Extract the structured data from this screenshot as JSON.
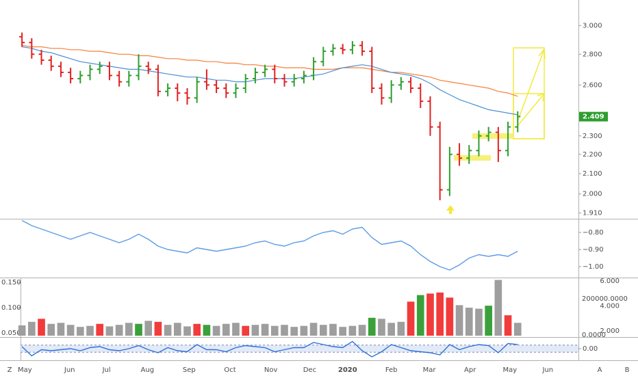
{
  "x_axis": {
    "xlim": [
      -0.15,
      57.25
    ],
    "xticks": [
      {
        "value": 0.3,
        "label": "May"
      },
      {
        "value": 4.9,
        "label": "Jun"
      },
      {
        "value": 8.7,
        "label": "Jul"
      },
      {
        "value": 12.9,
        "label": "Aug"
      },
      {
        "value": 17.2,
        "label": "Sep"
      },
      {
        "value": 21.4,
        "label": "Oct"
      },
      {
        "value": 25.6,
        "label": "Nov"
      },
      {
        "value": 29.6,
        "label": "Dec"
      },
      {
        "value": 33.5,
        "label": "2020"
      },
      {
        "value": 38.0,
        "label": "Feb"
      },
      {
        "value": 41.9,
        "label": "Mar"
      },
      {
        "value": 46.1,
        "label": "Apr"
      },
      {
        "value": 50.2,
        "label": "May"
      },
      {
        "value": 54.1,
        "label": "Jun"
      }
    ],
    "corner_labels": [
      "Z",
      "A",
      "B"
    ]
  },
  "chart_data": [
    {
      "type": "ohlc",
      "log_scale": true,
      "ylim": [
        1.89,
        3.18
      ],
      "yticks": [
        {
          "value": 3,
          "label": "3.000"
        },
        {
          "value": 2.8,
          "label": "2.800"
        },
        {
          "value": 2.6,
          "label": "2.600"
        },
        {
          "value": 2.3,
          "label": "2.300"
        },
        {
          "value": 2.2,
          "label": "2.200"
        },
        {
          "value": 2.1,
          "label": "2.100"
        },
        {
          "value": 2,
          "label": "2.000"
        },
        {
          "value": 1.91,
          "label": "1.910"
        }
      ],
      "last_price": {
        "value": 2.409,
        "label": "2.409",
        "color": "#2e9e2e"
      },
      "up_color": "#2e9e2e",
      "down_color": "#e02020",
      "open": [
        2.92,
        2.88,
        2.8,
        2.76,
        2.72,
        2.68,
        2.64,
        2.66,
        2.7,
        2.72,
        2.66,
        2.62,
        2.66,
        2.72,
        2.7,
        2.56,
        2.58,
        2.55,
        2.52,
        2.62,
        2.6,
        2.58,
        2.55,
        2.58,
        2.64,
        2.68,
        2.7,
        2.64,
        2.62,
        2.64,
        2.66,
        2.75,
        2.82,
        2.84,
        2.83,
        2.86,
        2.82,
        2.58,
        2.52,
        2.6,
        2.62,
        2.58,
        2.5,
        2.35,
        2.02,
        2.2,
        2.18,
        2.22,
        2.3,
        2.32,
        2.22,
        2.35
      ],
      "high": [
        2.95,
        2.91,
        2.83,
        2.79,
        2.75,
        2.71,
        2.69,
        2.73,
        2.75,
        2.75,
        2.69,
        2.69,
        2.8,
        2.75,
        2.73,
        2.61,
        2.61,
        2.58,
        2.65,
        2.7,
        2.63,
        2.61,
        2.61,
        2.67,
        2.71,
        2.73,
        2.73,
        2.67,
        2.67,
        2.69,
        2.78,
        2.85,
        2.87,
        2.87,
        2.89,
        2.89,
        2.85,
        2.61,
        2.63,
        2.65,
        2.65,
        2.61,
        2.53,
        2.38,
        2.24,
        2.26,
        2.25,
        2.33,
        2.35,
        2.35,
        2.38,
        2.44
      ],
      "low": [
        2.85,
        2.77,
        2.73,
        2.69,
        2.65,
        2.61,
        2.61,
        2.63,
        2.67,
        2.63,
        2.59,
        2.59,
        2.63,
        2.67,
        2.53,
        2.53,
        2.5,
        2.48,
        2.49,
        2.57,
        2.55,
        2.52,
        2.52,
        2.55,
        2.61,
        2.65,
        2.61,
        2.59,
        2.59,
        2.61,
        2.63,
        2.72,
        2.79,
        2.8,
        2.8,
        2.79,
        2.55,
        2.48,
        2.49,
        2.57,
        2.55,
        2.46,
        2.3,
        1.97,
        1.99,
        2.14,
        2.15,
        2.19,
        2.27,
        2.16,
        2.19,
        2.32
      ],
      "close": [
        2.88,
        2.8,
        2.76,
        2.72,
        2.68,
        2.64,
        2.66,
        2.7,
        2.72,
        2.66,
        2.62,
        2.66,
        2.72,
        2.7,
        2.56,
        2.58,
        2.55,
        2.52,
        2.62,
        2.6,
        2.58,
        2.55,
        2.58,
        2.64,
        2.68,
        2.7,
        2.64,
        2.62,
        2.64,
        2.66,
        2.75,
        2.82,
        2.84,
        2.83,
        2.86,
        2.82,
        2.58,
        2.52,
        2.6,
        2.62,
        2.58,
        2.5,
        2.35,
        2.02,
        2.2,
        2.18,
        2.22,
        2.3,
        2.32,
        2.22,
        2.35,
        2.41
      ],
      "series": [
        {
          "color": "#f57f3b",
          "values": [
            2.86,
            2.85,
            2.85,
            2.84,
            2.84,
            2.83,
            2.83,
            2.82,
            2.82,
            2.81,
            2.8,
            2.8,
            2.79,
            2.79,
            2.78,
            2.77,
            2.77,
            2.76,
            2.76,
            2.75,
            2.75,
            2.74,
            2.74,
            2.73,
            2.73,
            2.72,
            2.72,
            2.71,
            2.71,
            2.71,
            2.7,
            2.7,
            2.7,
            2.71,
            2.71,
            2.71,
            2.7,
            2.69,
            2.68,
            2.68,
            2.67,
            2.66,
            2.65,
            2.63,
            2.62,
            2.61,
            2.6,
            2.59,
            2.58,
            2.56,
            2.55,
            2.53
          ]
        },
        {
          "color": "#4a8fd4",
          "values": [
            2.85,
            2.84,
            2.82,
            2.81,
            2.79,
            2.77,
            2.75,
            2.74,
            2.73,
            2.72,
            2.71,
            2.7,
            2.7,
            2.69,
            2.68,
            2.67,
            2.66,
            2.65,
            2.65,
            2.64,
            2.63,
            2.63,
            2.62,
            2.62,
            2.63,
            2.64,
            2.64,
            2.64,
            2.64,
            2.65,
            2.66,
            2.67,
            2.69,
            2.71,
            2.72,
            2.73,
            2.72,
            2.7,
            2.68,
            2.67,
            2.66,
            2.64,
            2.61,
            2.57,
            2.54,
            2.51,
            2.49,
            2.47,
            2.45,
            2.44,
            2.43,
            2.42
          ]
        }
      ]
    },
    {
      "type": "line",
      "ylim": [
        -1.06,
        -0.728
      ],
      "yticks": [
        {
          "value": -0.8,
          "label": "−0.80"
        },
        {
          "value": -0.9,
          "label": "−0.90"
        },
        {
          "value": -1,
          "label": "−1.00"
        }
      ],
      "series": [
        {
          "color": "#5b9be6",
          "values": [
            -0.73,
            -0.76,
            -0.78,
            -0.8,
            -0.82,
            -0.84,
            -0.82,
            -0.8,
            -0.82,
            -0.84,
            -0.86,
            -0.84,
            -0.81,
            -0.84,
            -0.88,
            -0.9,
            -0.91,
            -0.92,
            -0.89,
            -0.9,
            -0.91,
            -0.9,
            -0.89,
            -0.88,
            -0.86,
            -0.85,
            -0.87,
            -0.88,
            -0.86,
            -0.85,
            -0.82,
            -0.8,
            -0.79,
            -0.81,
            -0.78,
            -0.77,
            -0.83,
            -0.87,
            -0.86,
            -0.85,
            -0.88,
            -0.93,
            -0.97,
            -1.0,
            -1.02,
            -0.99,
            -0.95,
            -0.93,
            -0.94,
            -0.93,
            -0.94,
            -0.91
          ]
        }
      ]
    },
    {
      "type": "bar",
      "ylim": [
        0.0446,
        0.157
      ],
      "yticks": [
        {
          "value": 0.15,
          "label": "0.150"
        },
        {
          "value": 0.1,
          "label": "0.100"
        },
        {
          "value": 0.05,
          "label": "0.050"
        }
      ],
      "y2lim": [
        1.616,
        6.164
      ],
      "y2ticks": [
        {
          "value": 6,
          "label": "6.000"
        },
        {
          "value": 4,
          "label": "4.000"
        },
        {
          "value": 2,
          "label": "2.000"
        }
      ],
      "y3lim": [
        -3774,
        309434
      ],
      "y3ticks": [
        {
          "value": 200000,
          "label": "200000.0000"
        },
        {
          "value": 0,
          "label": "0.0000"
        }
      ],
      "values": [
        0.065,
        0.072,
        0.078,
        0.068,
        0.07,
        0.066,
        0.062,
        0.064,
        0.068,
        0.063,
        0.066,
        0.07,
        0.068,
        0.074,
        0.072,
        0.066,
        0.07,
        0.063,
        0.068,
        0.066,
        0.064,
        0.068,
        0.07,
        0.064,
        0.066,
        0.068,
        0.064,
        0.066,
        0.062,
        0.064,
        0.07,
        0.066,
        0.068,
        0.062,
        0.064,
        0.066,
        0.08,
        0.078,
        0.07,
        0.072,
        0.112,
        0.125,
        0.128,
        0.13,
        0.12,
        0.105,
        0.1,
        0.098,
        0.104,
        0.155,
        0.085,
        0.07
      ],
      "colors": [
        "#9e9e9e",
        "#9e9e9e",
        "#f23b3b",
        "#9e9e9e",
        "#9e9e9e",
        "#9e9e9e",
        "#9e9e9e",
        "#9e9e9e",
        "#f23b3b",
        "#9e9e9e",
        "#9e9e9e",
        "#9e9e9e",
        "#3aa13a",
        "#9e9e9e",
        "#f23b3b",
        "#9e9e9e",
        "#9e9e9e",
        "#9e9e9e",
        "#f23b3b",
        "#3aa13a",
        "#9e9e9e",
        "#9e9e9e",
        "#9e9e9e",
        "#f23b3b",
        "#9e9e9e",
        "#9e9e9e",
        "#9e9e9e",
        "#9e9e9e",
        "#9e9e9e",
        "#9e9e9e",
        "#9e9e9e",
        "#9e9e9e",
        "#9e9e9e",
        "#9e9e9e",
        "#9e9e9e",
        "#9e9e9e",
        "#3aa13a",
        "#9e9e9e",
        "#9e9e9e",
        "#9e9e9e",
        "#f23b3b",
        "#3aa13a",
        "#f23b3b",
        "#f23b3b",
        "#f23b3b",
        "#9e9e9e",
        "#9e9e9e",
        "#9e9e9e",
        "#3aa13a",
        "#9e9e9e",
        "#f23b3b",
        "#9e9e9e"
      ]
    },
    {
      "type": "line",
      "ylim": [
        -1,
        1
      ],
      "yticks": [
        {
          "value": 0,
          "label": "0.00"
        }
      ],
      "band": [
        -0.35,
        0.35
      ],
      "band_color": "#cfdcf3",
      "series": [
        {
          "color": "#2f6fd6",
          "values": [
            0.2,
            -0.7,
            -0.1,
            -0.2,
            -0.1,
            0.0,
            -0.2,
            0.1,
            0.2,
            -0.1,
            -0.2,
            0.0,
            0.3,
            -0.1,
            -0.4,
            0.1,
            -0.2,
            -0.3,
            0.4,
            -0.1,
            -0.1,
            -0.3,
            0.1,
            0.3,
            0.2,
            0.1,
            -0.3,
            -0.1,
            0.1,
            0.1,
            0.6,
            0.4,
            0.2,
            0.1,
            0.7,
            -0.2,
            -0.8,
            -0.3,
            0.4,
            0.1,
            -0.2,
            -0.3,
            -0.4,
            -0.6,
            0.4,
            -0.1,
            0.2,
            0.4,
            0.3,
            -0.4,
            0.5,
            0.4
          ]
        }
      ]
    }
  ]
}
